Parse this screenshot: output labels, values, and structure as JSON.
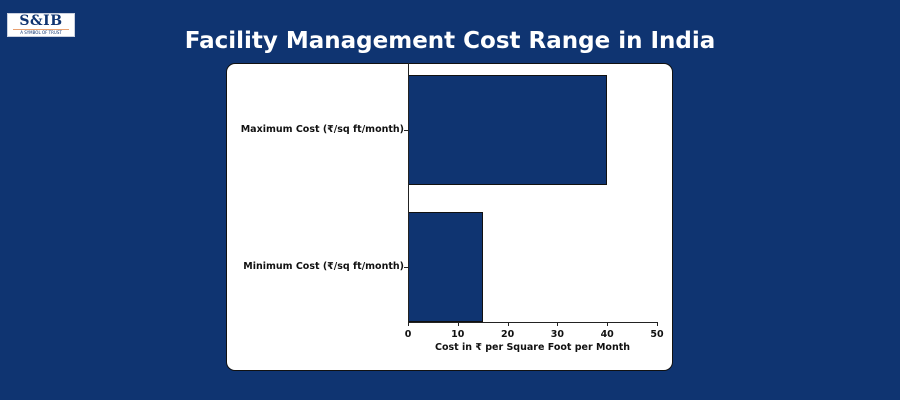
{
  "logo": {
    "main": "S&IB",
    "sub": "A SYMBOL OF TRUST"
  },
  "title": "Facility Management Cost Range in India",
  "colors": {
    "background": "#0f3471",
    "bar": "#0f3471",
    "card": "#ffffff"
  },
  "chart_data": {
    "type": "bar",
    "orientation": "horizontal",
    "title": "Facility Management Cost Range in India",
    "categories": [
      "Maximum Cost (₹/sq ft/month)",
      "Minimum Cost (₹/sq ft/month)"
    ],
    "values": [
      40,
      15
    ],
    "xlabel": "Cost in ₹ per Square Foot per Month",
    "ylabel": "",
    "xlim": [
      0,
      50
    ],
    "xticks": [
      "0",
      "10",
      "20",
      "30",
      "40",
      "50"
    ],
    "grid": false,
    "legend": null
  }
}
